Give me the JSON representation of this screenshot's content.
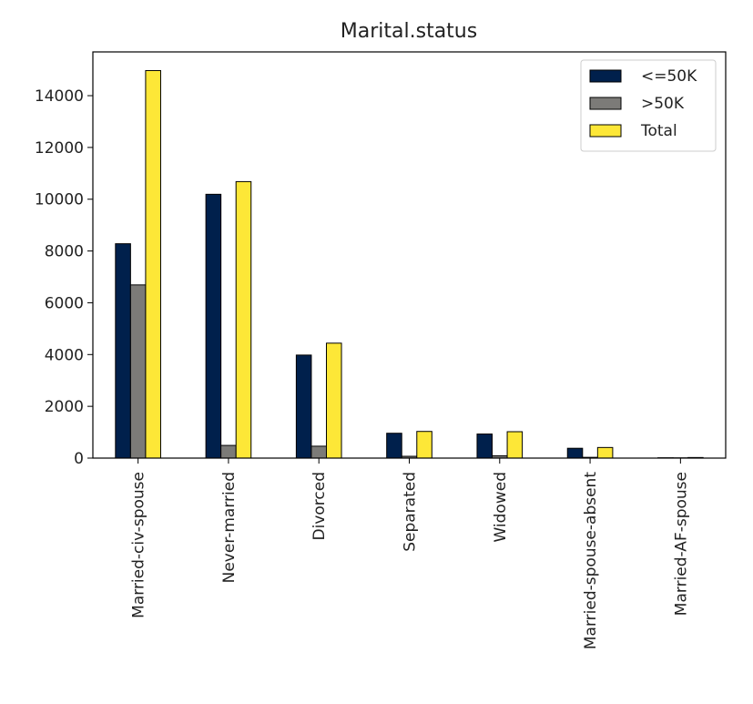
{
  "chart_data": {
    "type": "bar",
    "title": "Marital.status",
    "xlabel": "",
    "ylabel": "",
    "categories": [
      "Married-civ-spouse",
      "Never-married",
      "Divorced",
      "Separated",
      "Widowed",
      "Married-spouse-absent",
      "Married-AF-spouse"
    ],
    "series": [
      {
        "name": "<=50K",
        "color": "#00204c",
        "values": [
          8280,
          10190,
          3980,
          960,
          930,
          380,
          13
        ]
      },
      {
        "name": ">50K",
        "color": "#7c7b78",
        "values": [
          6690,
          490,
          460,
          70,
          90,
          30,
          10
        ]
      },
      {
        "name": "Total",
        "color": "#fde737",
        "values": [
          14970,
          10680,
          4440,
          1030,
          1020,
          410,
          23
        ]
      }
    ],
    "ylim": [
      0,
      15690
    ],
    "yticks": [
      0,
      2000,
      4000,
      6000,
      8000,
      10000,
      12000,
      14000
    ],
    "grid": false,
    "legend_position": "top-right"
  }
}
